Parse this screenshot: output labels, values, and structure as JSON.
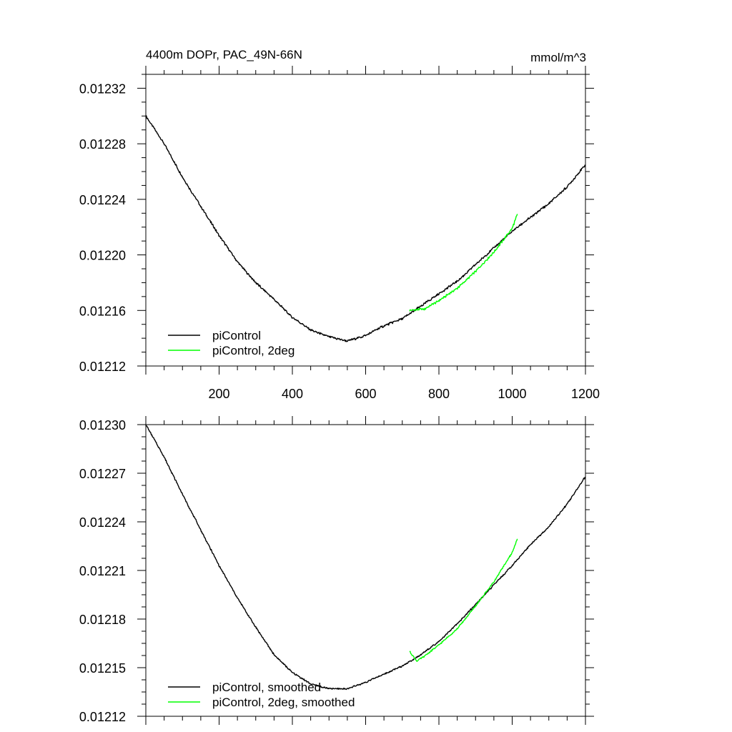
{
  "chart_data": [
    {
      "type": "line",
      "title": "4400m DOPr, PAC_49N-66N",
      "units": "mmol/m^3",
      "xlim": [
        0,
        1200
      ],
      "ylim": [
        0.01212,
        0.01233
      ],
      "x_tick_labels": [
        "200",
        "400",
        "600",
        "800",
        "1000",
        "1200"
      ],
      "y_tick_labels": [
        "0.01212",
        "0.01216",
        "0.01220",
        "0.01224",
        "0.01228",
        "0.01232"
      ],
      "legend_position": "bottom-left",
      "series": [
        {
          "name": "piControl",
          "color": "#000000",
          "x": [
            0,
            50,
            100,
            150,
            200,
            250,
            300,
            350,
            400,
            450,
            500,
            550,
            600,
            650,
            700,
            750,
            800,
            850,
            900,
            950,
            1000,
            1050,
            1100,
            1150,
            1200
          ],
          "y": [
            0.0123,
            0.01228,
            0.012256,
            0.012235,
            0.012214,
            0.012195,
            0.01218,
            0.012168,
            0.012155,
            0.012146,
            0.012141,
            0.012138,
            0.012142,
            0.012149,
            0.012154,
            0.012163,
            0.012172,
            0.012181,
            0.012193,
            0.012205,
            0.012217,
            0.012227,
            0.012237,
            0.012249,
            0.012265
          ]
        },
        {
          "name": "piControl, 2deg",
          "color": "#00ff00",
          "x": [
            720,
            760,
            800,
            850,
            900,
            950,
            1000,
            1015
          ],
          "y": [
            0.01216,
            0.012161,
            0.012167,
            0.012176,
            0.012188,
            0.012202,
            0.012219,
            0.01223
          ]
        }
      ]
    },
    {
      "type": "line",
      "title": "",
      "xlim": [
        0,
        1200
      ],
      "ylim": [
        0.01212,
        0.0123
      ],
      "y_tick_labels": [
        "0.01212",
        "0.01215",
        "0.01218",
        "0.01221",
        "0.01224",
        "0.01227",
        "0.01230"
      ],
      "legend_position": "bottom-left",
      "series": [
        {
          "name": "piControl, smoothed",
          "color": "#000000",
          "x": [
            0,
            50,
            100,
            150,
            200,
            250,
            300,
            350,
            400,
            450,
            500,
            550,
            600,
            650,
            700,
            750,
            800,
            850,
            900,
            950,
            1000,
            1050,
            1100,
            1150,
            1200
          ],
          "y": [
            0.0123,
            0.01228,
            0.012257,
            0.012235,
            0.012213,
            0.012193,
            0.012175,
            0.012158,
            0.012147,
            0.01214,
            0.012137,
            0.012137,
            0.012141,
            0.012146,
            0.012151,
            0.012158,
            0.012166,
            0.012177,
            0.012189,
            0.012201,
            0.012213,
            0.012226,
            0.012237,
            0.012251,
            0.012268
          ]
        },
        {
          "name": "piControl, 2deg, smoothed",
          "color": "#00ff00",
          "x": [
            720,
            740,
            760,
            800,
            850,
            900,
            950,
            1000,
            1015
          ],
          "y": [
            0.01216,
            0.012154,
            0.012157,
            0.012164,
            0.012174,
            0.012188,
            0.012203,
            0.012221,
            0.01223
          ]
        }
      ]
    }
  ]
}
